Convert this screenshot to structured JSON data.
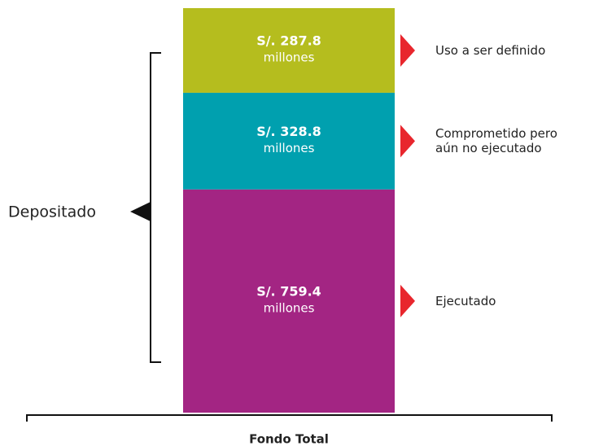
{
  "chart_data": {
    "type": "stacked_bar",
    "categories": [
      "Fondo Total"
    ],
    "series": [
      {
        "name": "Ejecutado",
        "color": "#a32583",
        "values": [
          759.4
        ],
        "value_labels": [
          "S/. 759.4"
        ]
      },
      {
        "name": "Comprometido pero aún no ejecutado",
        "color": "#00a0af",
        "values": [
          328.8
        ],
        "value_labels": [
          "S/. 328.8"
        ]
      },
      {
        "name": "Uso a ser definido",
        "color": "#b5bd1e",
        "values": [
          287.8
        ],
        "value_labels": [
          "S/. 287.8"
        ]
      }
    ],
    "unit_label": "millones",
    "annotation": "Depositado",
    "marker_color": "#e8262d",
    "ylim": [
      0,
      1376
    ]
  }
}
